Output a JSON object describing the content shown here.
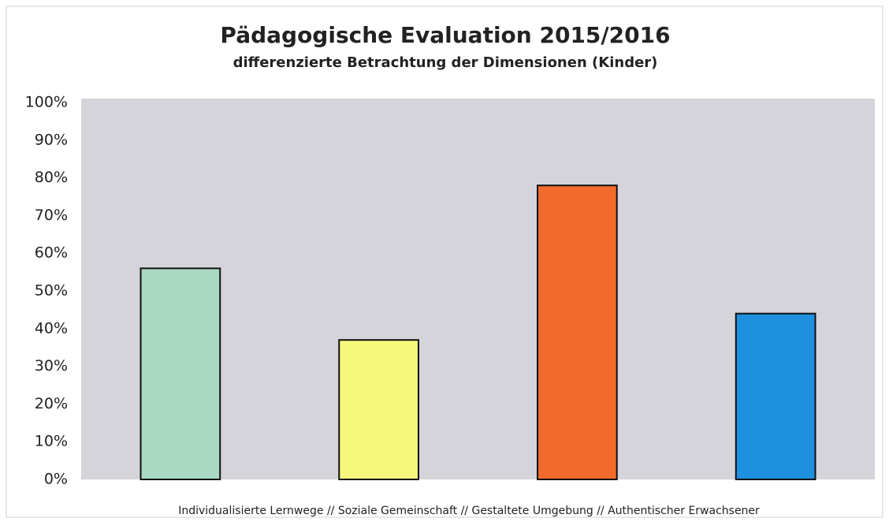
{
  "chart_data": {
    "type": "bar",
    "title": "Pädagogische Evaluation 2015/2016",
    "subtitle": "differenzierte Betrachtung der Dimensionen (Kinder)",
    "x_label": "Individualisierte Lernwege  // Soziale Gemeinschaft // Gestaltete Umgebung // Authentischer Erwachsener",
    "categories": [
      null,
      null,
      null,
      null
    ],
    "values": [
      56,
      37,
      78,
      44
    ],
    "colors": [
      "#a9d9c2",
      "#f7f77c",
      "#f26b2c",
      "#1f8fe0"
    ],
    "ylim": [
      0,
      100
    ],
    "yticks": [
      {
        "value": 0,
        "label": "0%"
      },
      {
        "value": 10,
        "label": "10%"
      },
      {
        "value": 20,
        "label": "20%"
      },
      {
        "value": 30,
        "label": "30%"
      },
      {
        "value": 40,
        "label": "40%"
      },
      {
        "value": 50,
        "label": "50%"
      },
      {
        "value": 60,
        "label": "60%"
      },
      {
        "value": 70,
        "label": "70%"
      },
      {
        "value": 80,
        "label": "80%"
      },
      {
        "value": 90,
        "label": "90%"
      },
      {
        "value": 100,
        "label": "100%"
      }
    ],
    "grid": false
  }
}
